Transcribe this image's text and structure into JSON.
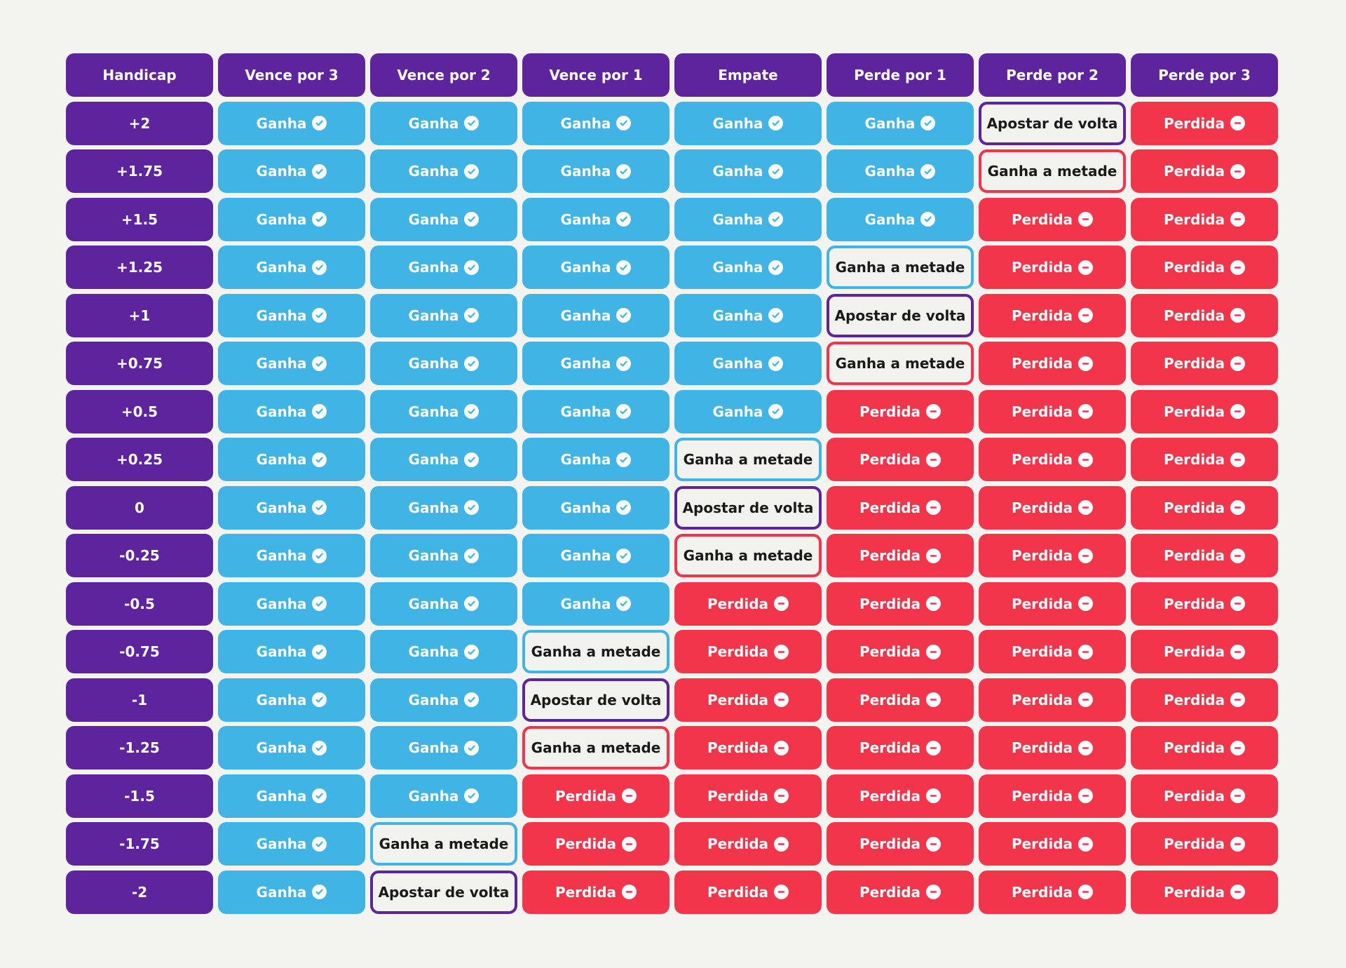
{
  "headers": [
    "Handicap",
    "Vence por 3",
    "Vence por 2",
    "Vence por 1",
    "Empate",
    "Perde por 1",
    "Perde por 2",
    "Perde por 3"
  ],
  "labels": {
    "win": "Ganha",
    "loss": "Perdida",
    "half_win": "Ganha a metade",
    "refund": "Apostar de volta",
    "half_loss": "Ganha a metade"
  },
  "colors": {
    "purple": "#5d249e",
    "blue": "#41b4e6",
    "red": "#f2354b",
    "background": "#f3f3ef"
  },
  "rows": [
    {
      "handicap": "+2",
      "results": [
        "win",
        "win",
        "win",
        "win",
        "win",
        "refund",
        "loss"
      ]
    },
    {
      "handicap": "+1.75",
      "results": [
        "win",
        "win",
        "win",
        "win",
        "win",
        "half_loss",
        "loss"
      ]
    },
    {
      "handicap": "+1.5",
      "results": [
        "win",
        "win",
        "win",
        "win",
        "win",
        "loss",
        "loss"
      ]
    },
    {
      "handicap": "+1.25",
      "results": [
        "win",
        "win",
        "win",
        "win",
        "half_win",
        "loss",
        "loss"
      ]
    },
    {
      "handicap": "+1",
      "results": [
        "win",
        "win",
        "win",
        "win",
        "refund",
        "loss",
        "loss"
      ]
    },
    {
      "handicap": "+0.75",
      "results": [
        "win",
        "win",
        "win",
        "win",
        "half_loss",
        "loss",
        "loss"
      ]
    },
    {
      "handicap": "+0.5",
      "results": [
        "win",
        "win",
        "win",
        "win",
        "loss",
        "loss",
        "loss"
      ]
    },
    {
      "handicap": "+0.25",
      "results": [
        "win",
        "win",
        "win",
        "half_win",
        "loss",
        "loss",
        "loss"
      ]
    },
    {
      "handicap": "0",
      "results": [
        "win",
        "win",
        "win",
        "refund",
        "loss",
        "loss",
        "loss"
      ]
    },
    {
      "handicap": "-0.25",
      "results": [
        "win",
        "win",
        "win",
        "half_loss",
        "loss",
        "loss",
        "loss"
      ]
    },
    {
      "handicap": "-0.5",
      "results": [
        "win",
        "win",
        "win",
        "loss",
        "loss",
        "loss",
        "loss"
      ]
    },
    {
      "handicap": "-0.75",
      "results": [
        "win",
        "win",
        "half_win",
        "loss",
        "loss",
        "loss",
        "loss"
      ]
    },
    {
      "handicap": "-1",
      "results": [
        "win",
        "win",
        "refund",
        "loss",
        "loss",
        "loss",
        "loss"
      ]
    },
    {
      "handicap": "-1.25",
      "results": [
        "win",
        "win",
        "half_loss",
        "loss",
        "loss",
        "loss",
        "loss"
      ]
    },
    {
      "handicap": "-1.5",
      "results": [
        "win",
        "win",
        "loss",
        "loss",
        "loss",
        "loss",
        "loss"
      ]
    },
    {
      "handicap": "-1.75",
      "results": [
        "win",
        "half_win",
        "loss",
        "loss",
        "loss",
        "loss",
        "loss"
      ]
    },
    {
      "handicap": "-2",
      "results": [
        "win",
        "refund",
        "loss",
        "loss",
        "loss",
        "loss",
        "loss"
      ]
    }
  ]
}
